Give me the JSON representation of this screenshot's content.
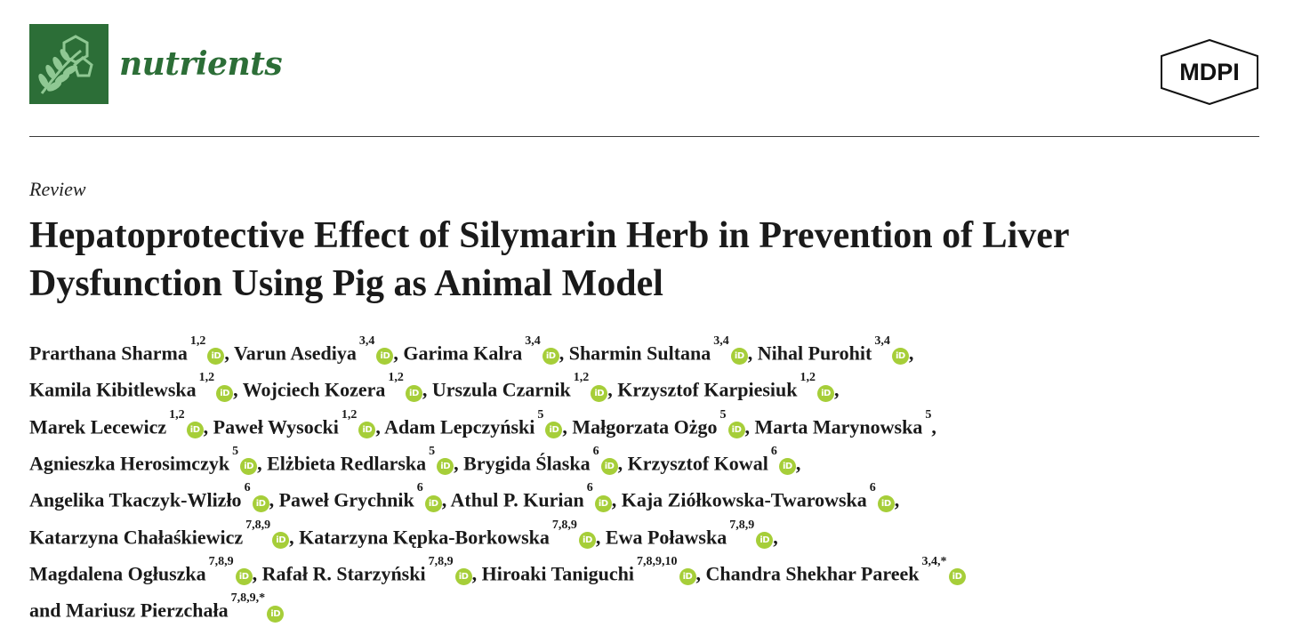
{
  "header": {
    "journal_name": "nutrients",
    "publisher_logo_text": "MDPI",
    "logo_color": "#2c6e37",
    "orcid_color": "#a6ce39"
  },
  "article": {
    "type": "Review",
    "title_line1": "Hepatoprotective Effect of Silymarin Herb in Prevention of Liver",
    "title_line2": "Dysfunction Using Pig as Animal Model"
  },
  "orcid_icon_text": "iD",
  "author_lines": [
    [
      {
        "name": "Prarthana Sharma",
        "aff": "1,2",
        "orcid": true,
        "sep": ", "
      },
      {
        "name": "Varun Asediya",
        "aff": "3,4",
        "orcid": true,
        "sep": ", "
      },
      {
        "name": "Garima Kalra",
        "aff": "3,4",
        "orcid": true,
        "sep": ", "
      },
      {
        "name": "Sharmin Sultana",
        "aff": "3,4",
        "orcid": true,
        "sep": ", "
      },
      {
        "name": "Nihal Purohit",
        "aff": "3,4",
        "orcid": true,
        "sep": ","
      }
    ],
    [
      {
        "name": "Kamila Kibitlewska",
        "aff": "1,2",
        "orcid": true,
        "sep": ", "
      },
      {
        "name": "Wojciech Kozera",
        "aff": "1,2",
        "orcid": true,
        "sep": ", "
      },
      {
        "name": "Urszula Czarnik",
        "aff": "1,2",
        "orcid": true,
        "sep": ", "
      },
      {
        "name": "Krzysztof Karpiesiuk",
        "aff": "1,2",
        "orcid": true,
        "sep": ","
      }
    ],
    [
      {
        "name": "Marek Lecewicz",
        "aff": "1,2",
        "orcid": true,
        "sep": ", "
      },
      {
        "name": "Paweł Wysocki",
        "aff": "1,2",
        "orcid": true,
        "sep": ", "
      },
      {
        "name": "Adam Lepczyński",
        "aff": "5",
        "orcid": true,
        "sep": ", "
      },
      {
        "name": "Małgorzata Ożgo",
        "aff": "5",
        "orcid": true,
        "sep": ", "
      },
      {
        "name": "Marta Marynowska",
        "aff": "5",
        "orcid": false,
        "sep": ","
      }
    ],
    [
      {
        "name": "Agnieszka Herosimczyk",
        "aff": "5",
        "orcid": true,
        "sep": ", "
      },
      {
        "name": "Elżbieta Redlarska",
        "aff": "5",
        "orcid": true,
        "sep": ", "
      },
      {
        "name": "Brygida Ślaska",
        "aff": "6",
        "orcid": true,
        "sep": ", "
      },
      {
        "name": "Krzysztof Kowal",
        "aff": "6",
        "orcid": true,
        "sep": ","
      }
    ],
    [
      {
        "name": "Angelika Tkaczyk-Wlizło",
        "aff": "6",
        "orcid": true,
        "sep": ", "
      },
      {
        "name": "Paweł Grychnik",
        "aff": "6",
        "orcid": true,
        "sep": ", "
      },
      {
        "name": "Athul P. Kurian",
        "aff": "6",
        "orcid": true,
        "sep": ", "
      },
      {
        "name": "Kaja Ziółkowska-Twarowska",
        "aff": "6",
        "orcid": true,
        "sep": ","
      }
    ],
    [
      {
        "name": "Katarzyna Chałaśkiewicz",
        "aff": "7,8,9",
        "orcid": true,
        "sep": ", "
      },
      {
        "name": "Katarzyna Kępka-Borkowska",
        "aff": "7,8,9",
        "orcid": true,
        "sep": ", "
      },
      {
        "name": "Ewa Poławska",
        "aff": "7,8,9",
        "orcid": true,
        "sep": ","
      }
    ],
    [
      {
        "name": "Magdalena Ogłuszka",
        "aff": "7,8,9",
        "orcid": true,
        "sep": ", "
      },
      {
        "name": "Rafał R. Starzyński",
        "aff": "7,8,9",
        "orcid": true,
        "sep": ", "
      },
      {
        "name": "Hiroaki Taniguchi",
        "aff": "7,8,9,10",
        "orcid": true,
        "sep": ", "
      },
      {
        "name": "Chandra Shekhar Pareek",
        "aff": "3,4,*",
        "orcid": true,
        "sep": ""
      }
    ],
    [
      {
        "prefix": "and ",
        "name": "Mariusz Pierzchała",
        "aff": "7,8,9,*",
        "orcid": true,
        "sep": ""
      }
    ]
  ]
}
